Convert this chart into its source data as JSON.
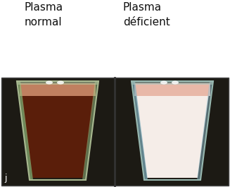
{
  "title_left": "Plasma\nnormal",
  "title_right": "Plasma\ndéficient",
  "bg_color": "#ffffff",
  "image_bg": "#1c1a14",
  "fig_width": 3.27,
  "fig_height": 2.65,
  "dpi": 100,
  "label_j": "j",
  "left_cup": {
    "glass_fill": "#b8c8a0",
    "glass_alpha": 0.25,
    "liquid_color": "#5a1e0a",
    "liquid_top_color": "#c08060",
    "glass_edge": "#a8b890",
    "highlight_left": "#90b878",
    "highlight_right": "#a0c888"
  },
  "right_cup": {
    "glass_fill": "#b0c8c0",
    "glass_alpha": 0.2,
    "liquid_color": "#f5ede8",
    "liquid_top_color": "#e8b8a8",
    "glass_edge": "#98b8b0",
    "highlight_left": "#80b0c0",
    "highlight_right": "#90c0d0"
  },
  "border_color": "#444444",
  "text_color": "#111111",
  "font_size_title": 11,
  "divider_color": "#333333"
}
